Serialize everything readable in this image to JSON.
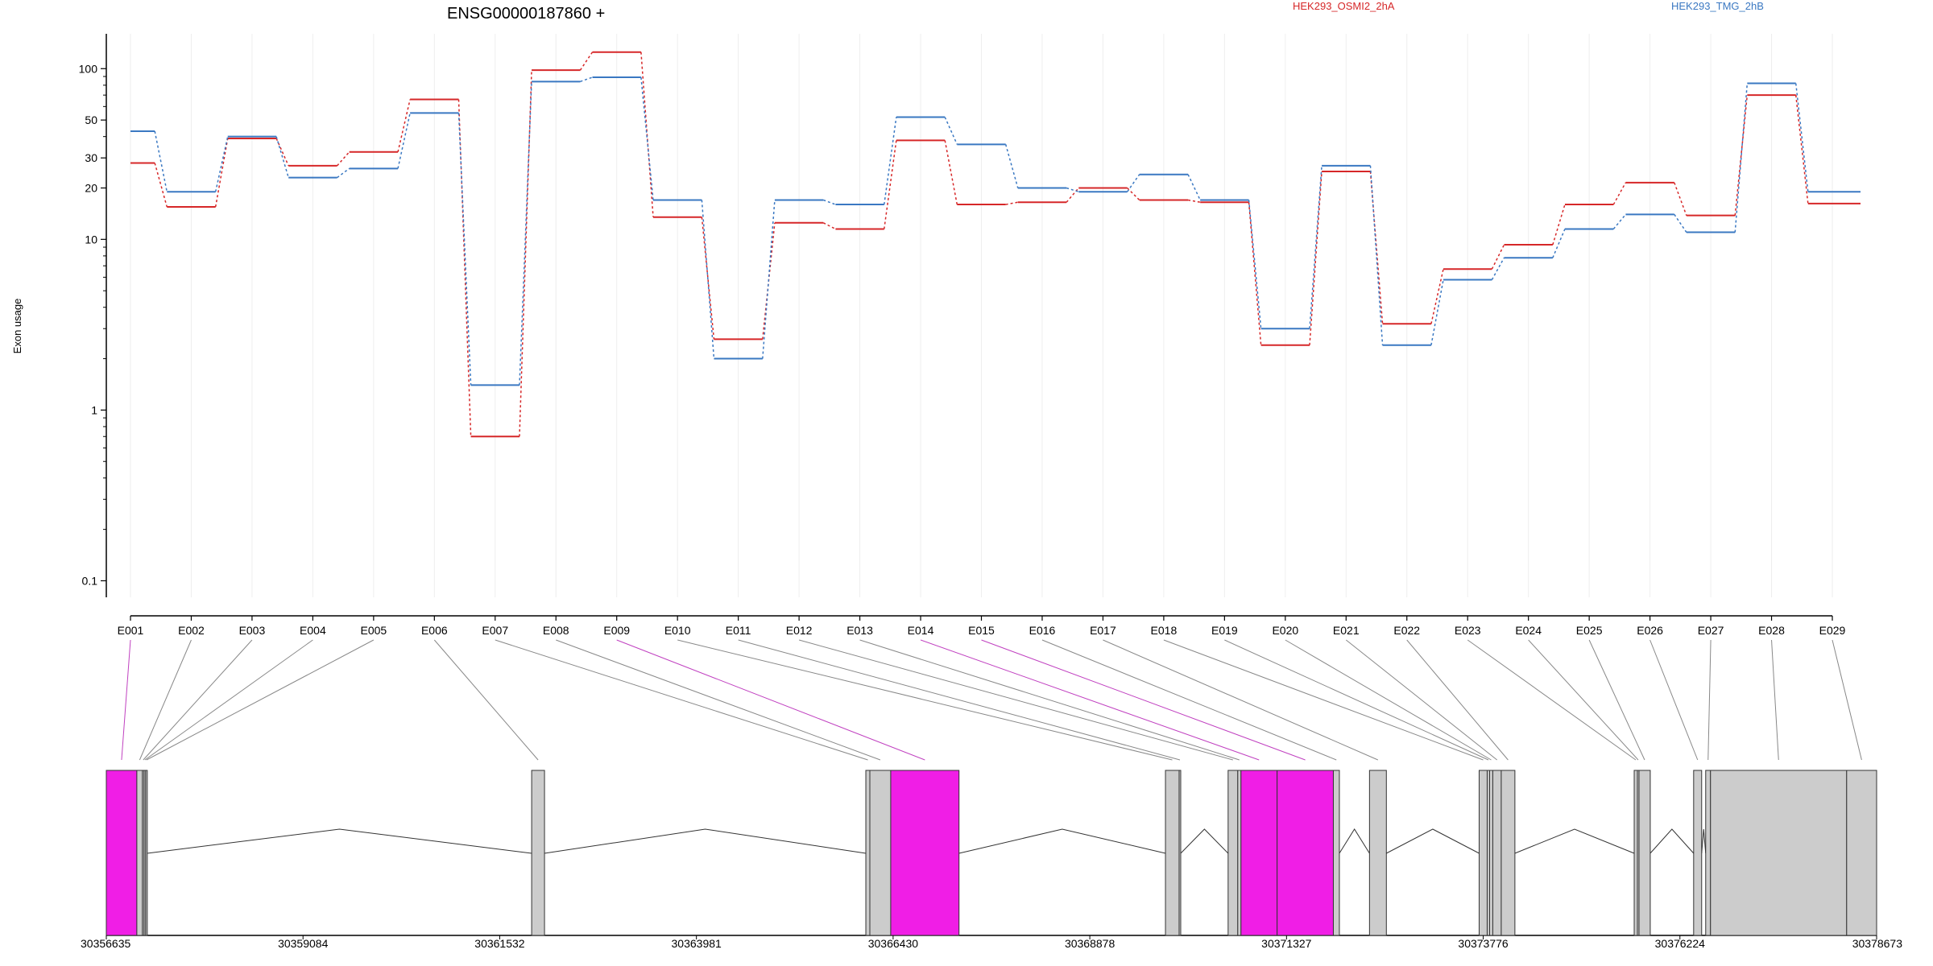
{
  "chart_data": {
    "type": "line",
    "title": "ENSG00000187860 +",
    "ylabel": "Exon usage",
    "y_scale": "log",
    "ylim": [
      0.08,
      160
    ],
    "yticks": [
      0.1,
      1,
      10,
      20,
      30,
      50,
      100
    ],
    "ytick_labels": [
      "0.1",
      "1",
      "10",
      "20",
      "30",
      "50",
      "100"
    ],
    "grid": "vertical-per-exon",
    "legend_position": "top",
    "categories": [
      "E001",
      "E002",
      "E003",
      "E004",
      "E005",
      "E006",
      "E007",
      "E008",
      "E009",
      "E010",
      "E011",
      "E012",
      "E013",
      "E014",
      "E015",
      "E016",
      "E017",
      "E018",
      "E019",
      "E020",
      "E021",
      "E022",
      "E023",
      "E024",
      "E025",
      "E026",
      "E027",
      "E028",
      "E029"
    ],
    "series": [
      {
        "name": "HEK293_OSMI2_2hA",
        "color": "#d62728",
        "values": [
          28,
          15.5,
          39,
          27,
          32.5,
          66,
          0.7,
          98,
          125,
          13.5,
          2.6,
          12.5,
          11.5,
          38,
          16,
          16.5,
          20,
          17,
          16.5,
          2.4,
          25,
          3.2,
          6.7,
          9.3,
          16,
          21.5,
          13.8,
          70,
          16.2
        ]
      },
      {
        "name": "HEK293_TMG_2hB",
        "color": "#3a78c2",
        "values": [
          43,
          19,
          40,
          23,
          26,
          55,
          1.4,
          84,
          89,
          17,
          2,
          17,
          16,
          52,
          36,
          20,
          19,
          24,
          17,
          3,
          27,
          2.4,
          5.8,
          7.8,
          11.5,
          14,
          11,
          82,
          19
        ]
      }
    ],
    "gene_coordinate_ticks": [
      "30356635",
      "30359084",
      "30361532",
      "30363981",
      "30366430",
      "30368878",
      "30371327",
      "30373776",
      "30376224",
      "30378673"
    ],
    "gene_model": {
      "exon_color": "#cccccc",
      "highlight_color": "#f01ee6",
      "highlighted_exons": [
        "E001",
        "E009",
        "E014",
        "E015"
      ],
      "coord_range": [
        30356635,
        30378673
      ],
      "exon_coords": [
        [
          30356635,
          30357015
        ],
        [
          30357015,
          30357085
        ],
        [
          30357085,
          30357105
        ],
        [
          30357105,
          30357125
        ],
        [
          30357125,
          30357145
        ],
        [
          30361930,
          30362090
        ],
        [
          30366090,
          30366140
        ],
        [
          30366140,
          30366400
        ],
        [
          30366400,
          30367250
        ],
        [
          30369820,
          30369990
        ],
        [
          30369990,
          30370010
        ],
        [
          30370600,
          30370720
        ],
        [
          30370720,
          30370760
        ],
        [
          30370760,
          30371210
        ],
        [
          30371210,
          30371910
        ],
        [
          30371910,
          30371985
        ],
        [
          30372360,
          30372570
        ],
        [
          30373725,
          30373825
        ],
        [
          30373825,
          30373855
        ],
        [
          30373855,
          30373895
        ],
        [
          30373895,
          30374000
        ],
        [
          30374000,
          30374170
        ],
        [
          30375655,
          30375695
        ],
        [
          30375695,
          30375715
        ],
        [
          30375715,
          30375855
        ],
        [
          30376395,
          30376495
        ],
        [
          30376545,
          30376605
        ],
        [
          30376605,
          30378300
        ],
        [
          30378300,
          30378673
        ]
      ],
      "introns": [
        [
          30357145,
          30361930
        ],
        [
          30362090,
          30366090
        ],
        [
          30367250,
          30369820
        ],
        [
          30370010,
          30370600
        ],
        [
          30371985,
          30372360
        ],
        [
          30372570,
          30373725
        ],
        [
          30374170,
          30375655
        ],
        [
          30375855,
          30376395
        ],
        [
          30376495,
          30376545
        ]
      ]
    }
  }
}
